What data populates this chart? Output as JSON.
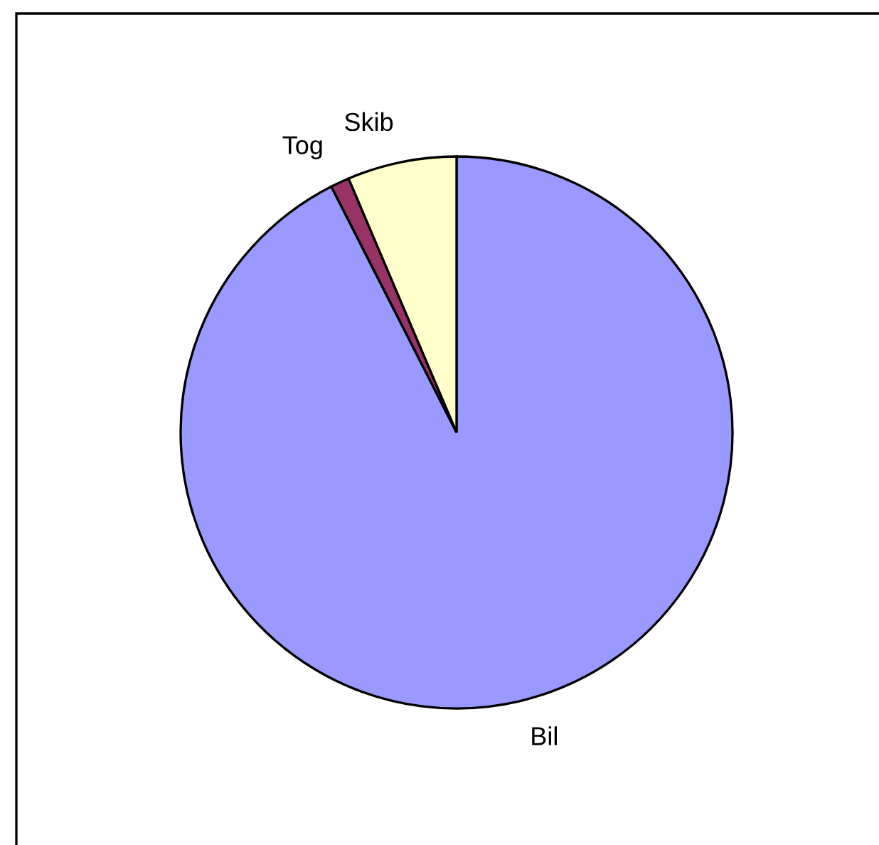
{
  "chart_data": {
    "type": "pie",
    "categories": [
      "Bil",
      "Tog",
      "Skib"
    ],
    "values": [
      92.5,
      1.1,
      6.4
    ],
    "colors": [
      "#9999ff",
      "#993366",
      "#ffffcc"
    ]
  }
}
